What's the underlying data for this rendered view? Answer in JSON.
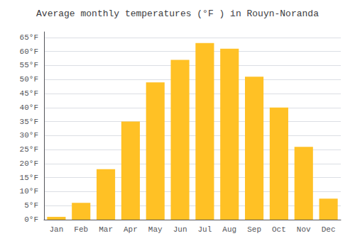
{
  "chart_data": {
    "type": "bar",
    "title": "Average monthly temperatures (°F ) in Rouyn-Noranda",
    "categories": [
      "Jan",
      "Feb",
      "Mar",
      "Apr",
      "May",
      "Jun",
      "Jul",
      "Aug",
      "Sep",
      "Oct",
      "Nov",
      "Dec"
    ],
    "values": [
      1,
      6,
      18,
      35,
      49,
      57,
      63,
      61,
      51,
      40,
      26,
      7.5
    ],
    "color": "#FFC125",
    "ylim": [
      0,
      67
    ],
    "yticks": [
      {
        "value": 0,
        "label": "0°F"
      },
      {
        "value": 5,
        "label": "5°F"
      },
      {
        "value": 10,
        "label": "10°F"
      },
      {
        "value": 15,
        "label": "15°F"
      },
      {
        "value": 20,
        "label": "20°F"
      },
      {
        "value": 25,
        "label": "25°F"
      },
      {
        "value": 30,
        "label": "30°F"
      },
      {
        "value": 35,
        "label": "35°F"
      },
      {
        "value": 40,
        "label": "40°F"
      },
      {
        "value": 45,
        "label": "45°F"
      },
      {
        "value": 50,
        "label": "50°F"
      },
      {
        "value": 55,
        "label": "55°F"
      },
      {
        "value": 60,
        "label": "60°F"
      },
      {
        "value": 65,
        "label": "65°F"
      }
    ],
    "grid": true
  }
}
